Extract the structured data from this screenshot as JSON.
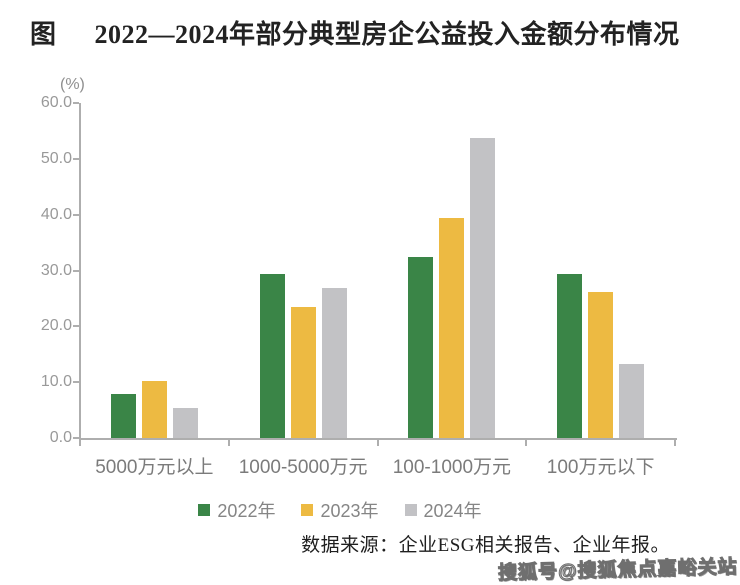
{
  "title": {
    "prefix": "图",
    "text": "2022—2024年部分典型房企公益投入金额分布情况"
  },
  "source": "数据来源：企业ESG相关报告、企业年报。",
  "watermark": "搜狐号@搜狐焦点嘉峪关站",
  "chart_data": {
    "type": "bar",
    "title": "2022—2024年部分典型房企公益投入金额分布情况",
    "y_unit": "(%)",
    "xlabel": "",
    "ylabel": "(%)",
    "ylim": [
      0,
      60
    ],
    "y_ticks": [
      0,
      10,
      20,
      30,
      40,
      50,
      60
    ],
    "y_tick_labels": [
      "0.0",
      "10.0",
      "20.0",
      "30.0",
      "40.0",
      "50.0",
      "60.0"
    ],
    "grid": false,
    "legend_position": "bottom",
    "categories": [
      "5000万元以上",
      "1000-5000万元",
      "100-1000万元",
      "100万元以下"
    ],
    "series": [
      {
        "name": "2022年",
        "color": "#3a8547",
        "values": [
          7.9,
          29.4,
          32.4,
          29.4
        ]
      },
      {
        "name": "2023年",
        "color": "#edba42",
        "values": [
          10.2,
          23.5,
          39.4,
          26.2
        ]
      },
      {
        "name": "2024年",
        "color": "#c2c2c5",
        "values": [
          5.4,
          26.9,
          53.8,
          13.3
        ]
      }
    ],
    "axis_color": "#aeaeae",
    "tick_label_color": "#999999",
    "category_label_color": "#7b7b7b"
  }
}
